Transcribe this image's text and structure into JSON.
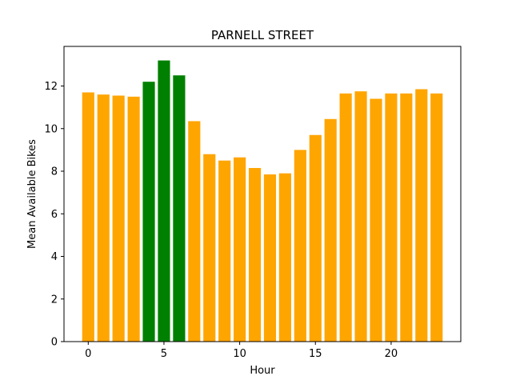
{
  "chart_data": {
    "type": "bar",
    "title": "PARNELL STREET",
    "xlabel": "Hour",
    "ylabel": "Mean Available Bikes",
    "x": [
      0,
      1,
      2,
      3,
      4,
      5,
      6,
      7,
      8,
      9,
      10,
      11,
      12,
      13,
      14,
      15,
      16,
      17,
      18,
      19,
      20,
      21,
      22,
      23
    ],
    "values": [
      11.7,
      11.6,
      11.55,
      11.5,
      12.2,
      13.2,
      12.5,
      10.35,
      8.8,
      8.5,
      8.65,
      8.15,
      7.85,
      7.9,
      9.0,
      9.7,
      10.45,
      11.65,
      11.75,
      11.4,
      11.65,
      11.65,
      11.85,
      11.65
    ],
    "colors": [
      "#ffa500",
      "#ffa500",
      "#ffa500",
      "#ffa500",
      "#008000",
      "#008000",
      "#008000",
      "#ffa500",
      "#ffa500",
      "#ffa500",
      "#ffa500",
      "#ffa500",
      "#ffa500",
      "#ffa500",
      "#ffa500",
      "#ffa500",
      "#ffa500",
      "#ffa500",
      "#ffa500",
      "#ffa500",
      "#ffa500",
      "#ffa500",
      "#ffa500",
      "#ffa500"
    ],
    "xticks": [
      0,
      5,
      10,
      15,
      20
    ],
    "yticks": [
      0,
      2,
      4,
      6,
      8,
      10,
      12
    ],
    "xlim": [
      -1.6,
      24.6
    ],
    "ylim": [
      0,
      13.86
    ],
    "grid": false,
    "legend": "none"
  }
}
